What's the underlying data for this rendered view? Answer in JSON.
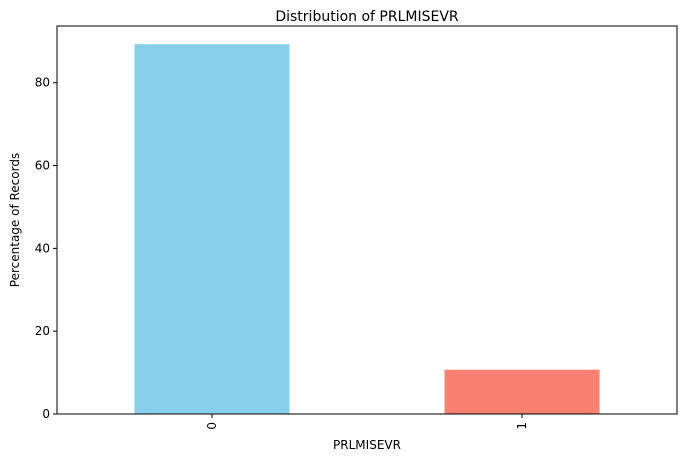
{
  "chart_data": {
    "type": "bar",
    "title": "Distribution of PRLMISEVR",
    "xlabel": "PRLMISEVR",
    "ylabel": "Percentage of Records",
    "categories": [
      "0",
      "1"
    ],
    "values": [
      89.3,
      10.7
    ],
    "colors": [
      "#87ceeb",
      "#fa8072"
    ],
    "ylim": [
      0,
      93.7
    ],
    "yticks": [
      0,
      20,
      40,
      60,
      80
    ],
    "ytick_labels": [
      "0",
      "20",
      "40",
      "60",
      "80"
    ],
    "grid": false,
    "legend": "none",
    "xtick_rotation": 90
  }
}
